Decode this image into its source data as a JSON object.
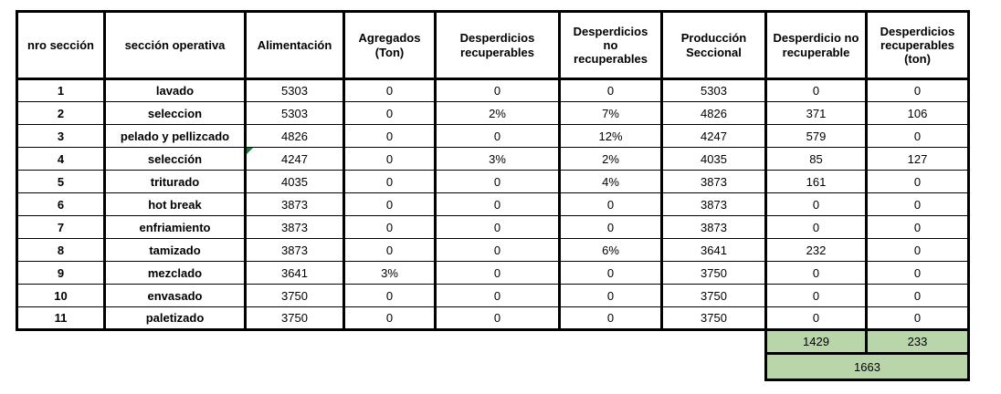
{
  "table": {
    "headers": [
      "nro sección",
      "sección operativa",
      "Alimentación",
      "Agregados (Ton)",
      "Desperdicios recuperables",
      "Desperdicios no recuperables",
      "Producción Seccional",
      "Desperdicio no recuperable",
      "Desperdicios recuperables (ton)"
    ],
    "rows": [
      [
        "1",
        "lavado",
        "5303",
        "0",
        "0",
        "0",
        "5303",
        "0",
        "0"
      ],
      [
        "2",
        "seleccion",
        "5303",
        "0",
        "2%",
        "7%",
        "4826",
        "371",
        "106"
      ],
      [
        "3",
        "pelado y pellizcado",
        "4826",
        "0",
        "0",
        "12%",
        "4247",
        "579",
        "0"
      ],
      [
        "4",
        "selección",
        "4247",
        "0",
        "3%",
        "2%",
        "4035",
        "85",
        "127"
      ],
      [
        "5",
        "triturado",
        "4035",
        "0",
        "0",
        "4%",
        "3873",
        "161",
        "0"
      ],
      [
        "6",
        "hot break",
        "3873",
        "0",
        "0",
        "0",
        "3873",
        "0",
        "0"
      ],
      [
        "7",
        "enfriamiento",
        "3873",
        "0",
        "0",
        "0",
        "3873",
        "0",
        "0"
      ],
      [
        "8",
        "tamizado",
        "3873",
        "0",
        "0",
        "6%",
        "3641",
        "232",
        "0"
      ],
      [
        "9",
        "mezclado",
        "3641",
        "3%",
        "0",
        "0",
        "3750",
        "0",
        "0"
      ],
      [
        "10",
        "envasado",
        "3750",
        "0",
        "0",
        "0",
        "3750",
        "0",
        "0"
      ],
      [
        "11",
        "paletizado",
        "3750",
        "0",
        "0",
        "0",
        "3750",
        "0",
        "0"
      ]
    ],
    "totals": {
      "no_recuperable": "1429",
      "recuperables_ton": "233",
      "grand_total": "1663"
    },
    "flag_cell": {
      "row": 4,
      "column": "Alimentación",
      "icon": "error-flag-icon"
    },
    "colors": {
      "total_fill": "#b9d6ab",
      "flag_green": "#1f7a3d",
      "border": "#000000",
      "text": "#000000",
      "background": "#ffffff"
    }
  },
  "chart_data": {
    "type": "table",
    "title": "",
    "columns": [
      "nro sección",
      "sección operativa",
      "Alimentación",
      "Agregados (Ton)",
      "Desperdicios recuperables",
      "Desperdicios no recuperables",
      "Producción Seccional",
      "Desperdicio no recuperable",
      "Desperdicios recuperables (ton)"
    ],
    "rows": [
      [
        "1",
        "lavado",
        "5303",
        "0",
        "0",
        "0",
        "5303",
        "0",
        "0"
      ],
      [
        "2",
        "seleccion",
        "5303",
        "0",
        "2%",
        "7%",
        "4826",
        "371",
        "106"
      ],
      [
        "3",
        "pelado y pellizcado",
        "4826",
        "0",
        "0",
        "12%",
        "4247",
        "579",
        "0"
      ],
      [
        "4",
        "selección",
        "4247",
        "0",
        "3%",
        "2%",
        "4035",
        "85",
        "127"
      ],
      [
        "5",
        "triturado",
        "4035",
        "0",
        "0",
        "4%",
        "3873",
        "161",
        "0"
      ],
      [
        "6",
        "hot break",
        "3873",
        "0",
        "0",
        "0",
        "3873",
        "0",
        "0"
      ],
      [
        "7",
        "enfriamiento",
        "3873",
        "0",
        "0",
        "0",
        "3873",
        "0",
        "0"
      ],
      [
        "8",
        "tamizado",
        "3873",
        "0",
        "0",
        "6%",
        "3641",
        "232",
        "0"
      ],
      [
        "9",
        "mezclado",
        "3641",
        "3%",
        "0",
        "0",
        "3750",
        "0",
        "0"
      ],
      [
        "10",
        "envasado",
        "3750",
        "0",
        "0",
        "0",
        "3750",
        "0",
        "0"
      ],
      [
        "11",
        "paletizado",
        "3750",
        "0",
        "0",
        "0",
        "3750",
        "0",
        "0"
      ]
    ],
    "footer_totals": {
      "desperdicio_no_recuperable": 1429,
      "desperdicios_recuperables_ton": 233,
      "total": 1663
    }
  }
}
